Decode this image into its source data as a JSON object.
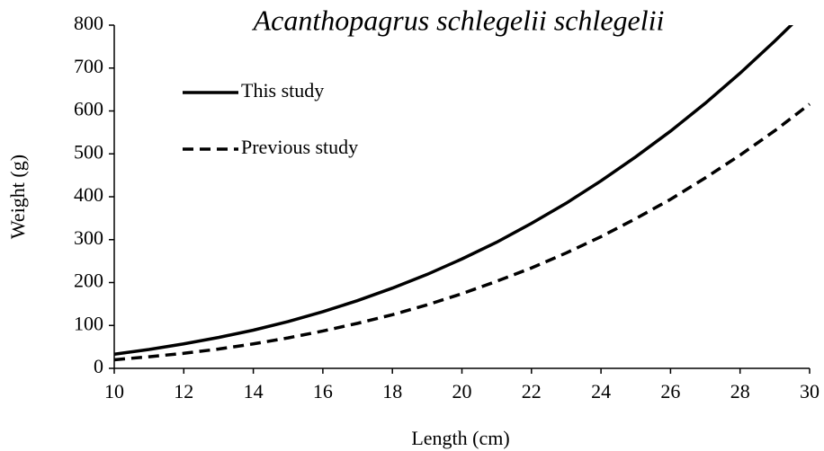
{
  "chart_data": {
    "type": "line",
    "title": "Acanthopagrus schlegelii schlegelii",
    "x_label": "Length (cm)",
    "y_label": "Weight (g)",
    "x": [
      10,
      11,
      12,
      13,
      14,
      15,
      16,
      17,
      18,
      19,
      20,
      21,
      22,
      23,
      24,
      25,
      26,
      27,
      28,
      29,
      30
    ],
    "series": [
      {
        "name": "This study",
        "color": "#000000",
        "dash": "solid",
        "values": [
          33,
          44,
          57,
          72,
          89,
          109,
          132,
          158,
          187,
          219,
          255,
          294,
          338,
          385,
          437,
          493,
          553,
          618,
          688,
          763,
          842
        ]
      },
      {
        "name": "Previous study",
        "color": "#000000",
        "dash": "dashed",
        "values": [
          20,
          27,
          35,
          45,
          57,
          71,
          87,
          105,
          125,
          148,
          174,
          203,
          234,
          269,
          307,
          349,
          394,
          444,
          497,
          554,
          616
        ]
      }
    ],
    "xlim": [
      10,
      30
    ],
    "xticks": [
      10,
      12,
      14,
      16,
      18,
      20,
      22,
      24,
      26,
      28,
      30
    ],
    "ylim": [
      0,
      800
    ],
    "yticks": [
      0,
      100,
      200,
      300,
      400,
      500,
      600,
      700,
      800
    ],
    "grid": false,
    "legend": "upper left"
  }
}
